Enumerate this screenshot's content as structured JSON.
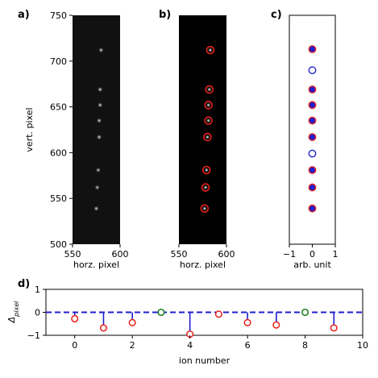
{
  "chart_data": [
    {
      "id": "a",
      "type": "image",
      "panel_label": "a)",
      "xlabel": "horz. pixel",
      "ylabel": "vert. pixel",
      "xlim": [
        550,
        600
      ],
      "ylim": [
        500,
        750
      ],
      "xticks": [
        550,
        600
      ],
      "yticks": [
        500,
        550,
        600,
        650,
        700,
        750
      ],
      "ions": [
        {
          "x": 580,
          "y": 712,
          "b": 0.5
        },
        {
          "x": 579,
          "y": 669,
          "b": 0.55
        },
        {
          "x": 579,
          "y": 652,
          "b": 0.5
        },
        {
          "x": 578,
          "y": 635,
          "b": 0.5
        },
        {
          "x": 578,
          "y": 617,
          "b": 0.55
        },
        {
          "x": 577,
          "y": 581,
          "b": 0.45
        },
        {
          "x": 576,
          "y": 562,
          "b": 0.45
        },
        {
          "x": 575,
          "y": 539,
          "b": 0.5
        }
      ]
    },
    {
      "id": "b",
      "type": "image",
      "panel_label": "b)",
      "xlabel": "horz. pixel",
      "xlim": [
        550,
        600
      ],
      "ylim": [
        500,
        750
      ],
      "xticks": [
        550,
        600
      ],
      "detections": [
        {
          "x": 583,
          "y": 712
        },
        {
          "x": 582,
          "y": 669
        },
        {
          "x": 581,
          "y": 652
        },
        {
          "x": 581,
          "y": 635
        },
        {
          "x": 580,
          "y": 617
        },
        {
          "x": 579,
          "y": 581
        },
        {
          "x": 578,
          "y": 562
        },
        {
          "x": 577,
          "y": 539
        }
      ]
    },
    {
      "id": "c",
      "type": "scatter",
      "panel_label": "c)",
      "xlabel": "arb. unit",
      "xlim": [
        -1,
        1
      ],
      "ylim": [
        500,
        750
      ],
      "xticks": [
        -1,
        0,
        1
      ],
      "xtick_labels": [
        "−1",
        "0",
        "1"
      ],
      "sites": [
        {
          "x": 0,
          "y": 713,
          "state": "bright"
        },
        {
          "x": 0,
          "y": 690,
          "state": "dark"
        },
        {
          "x": 0,
          "y": 669,
          "state": "bright"
        },
        {
          "x": 0,
          "y": 652,
          "state": "bright"
        },
        {
          "x": 0,
          "y": 635,
          "state": "bright"
        },
        {
          "x": 0,
          "y": 617,
          "state": "bright"
        },
        {
          "x": 0,
          "y": 599,
          "state": "dark"
        },
        {
          "x": 0,
          "y": 581,
          "state": "bright"
        },
        {
          "x": 0,
          "y": 562,
          "state": "bright"
        },
        {
          "x": 0,
          "y": 539,
          "state": "bright"
        }
      ]
    },
    {
      "id": "d",
      "type": "stem",
      "panel_label": "d)",
      "xlabel": "ion number",
      "ylabel": "Δpixel",
      "xlim": [
        -1,
        10
      ],
      "ylim": [
        -1,
        1
      ],
      "xticks": [
        0,
        2,
        4,
        6,
        8,
        10
      ],
      "yticks": [
        -1,
        0,
        1
      ],
      "ytick_labels": [
        "−1",
        "0",
        "1"
      ],
      "baseline": 0,
      "points": [
        {
          "x": 0,
          "y": -0.28,
          "state": "bright"
        },
        {
          "x": 1,
          "y": -0.68,
          "state": "bright"
        },
        {
          "x": 2,
          "y": -0.45,
          "state": "bright"
        },
        {
          "x": 3,
          "y": 0.0,
          "state": "dark"
        },
        {
          "x": 4,
          "y": -0.95,
          "state": "bright"
        },
        {
          "x": 5,
          "y": -0.08,
          "state": "bright"
        },
        {
          "x": 6,
          "y": -0.45,
          "state": "bright"
        },
        {
          "x": 7,
          "y": -0.55,
          "state": "bright"
        },
        {
          "x": 8,
          "y": 0.0,
          "state": "dark"
        },
        {
          "x": 9,
          "y": -0.68,
          "state": "bright"
        }
      ]
    }
  ],
  "colors": {
    "detection_ring": "#e8201c",
    "bright_ion": "#1f1fd0",
    "dark_ion_marker": "#1f1fd0",
    "stem": "#1f1fd0",
    "baseline": "#1f1fd0",
    "dark_ion_stem_marker": "#1a7a1a",
    "camera_background": "#000000"
  }
}
